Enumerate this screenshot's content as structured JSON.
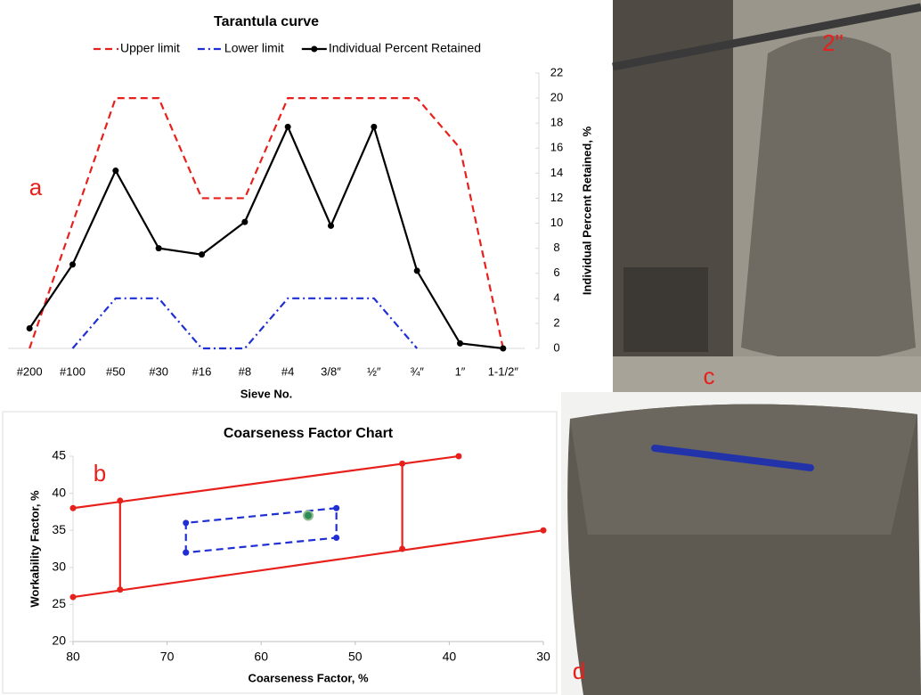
{
  "chart_data": [
    {
      "type": "line",
      "title": "Tarantula curve",
      "annotation": "a",
      "categories": [
        "#200",
        "#100",
        "#50",
        "#30",
        "#16",
        "#8",
        "#4",
        "3/8″",
        "½″",
        "¾″",
        "1″",
        "1-1/2″"
      ],
      "series": [
        {
          "name": "Upper limit",
          "color": "#e8201c",
          "dash": "dashed",
          "markers": false,
          "values": [
            0,
            10,
            20,
            20,
            12,
            12,
            20,
            20,
            20,
            20,
            16,
            0
          ]
        },
        {
          "name": "Lower limit",
          "color": "#1f2fd4",
          "dash": "dashdot",
          "markers": false,
          "values": [
            null,
            0,
            4,
            4,
            0,
            0,
            4,
            4,
            4,
            0,
            null,
            null
          ]
        },
        {
          "name": "Individual Percent Retained",
          "color": "#000000",
          "dash": "solid",
          "markers": true,
          "values": [
            1.6,
            6.7,
            14.2,
            8.0,
            7.5,
            10.1,
            17.7,
            9.8,
            17.7,
            6.2,
            0.4,
            0
          ]
        }
      ],
      "xlabel": "Sieve No.",
      "ylabel": "Individual Percent Retained, %",
      "y_axis_side": "right",
      "ylim": [
        0,
        22
      ],
      "yticks": [
        0,
        2,
        4,
        6,
        8,
        10,
        12,
        14,
        16,
        18,
        20,
        22
      ],
      "grid": false,
      "legend": "top"
    },
    {
      "type": "line",
      "title": "Coarseness Factor Chart",
      "annotation": "b",
      "series": [
        {
          "color": "#e8201c",
          "dash": "solid",
          "markers": true,
          "x": [
            80,
            39
          ],
          "values": [
            38,
            45
          ]
        },
        {
          "color": "#e8201c",
          "dash": "solid",
          "markers": true,
          "x": [
            80,
            30
          ],
          "values": [
            26,
            35
          ]
        },
        {
          "color": "#e8201c",
          "dash": "solid",
          "markers": true,
          "x": [
            75,
            75
          ],
          "values": [
            27,
            39
          ]
        },
        {
          "color": "#e8201c",
          "dash": "solid",
          "markers": true,
          "x": [
            45,
            45
          ],
          "values": [
            32.5,
            44
          ]
        },
        {
          "color": "#1f2fd4",
          "dash": "dashed",
          "markers": true,
          "x": [
            68,
            68,
            52,
            52,
            68
          ],
          "values": [
            32,
            36,
            38,
            34,
            32
          ]
        },
        {
          "color": "#2e8b57",
          "dash": "none",
          "markers": true,
          "x": [
            55
          ],
          "values": [
            37
          ]
        }
      ],
      "xlabel": "Coarseness Factor, %",
      "ylabel": "Workability Factor, %",
      "y_axis_side": "left",
      "xlim": [
        80,
        30
      ],
      "xticks": [
        80,
        70,
        60,
        50,
        40,
        30
      ],
      "ylim": [
        20,
        45
      ],
      "yticks": [
        20,
        25,
        30,
        35,
        40,
        45
      ],
      "grid": false
    }
  ],
  "photos": {
    "slump_cone": {
      "label": "c",
      "annotation": "2\""
    },
    "cube": {
      "label": "d"
    }
  }
}
